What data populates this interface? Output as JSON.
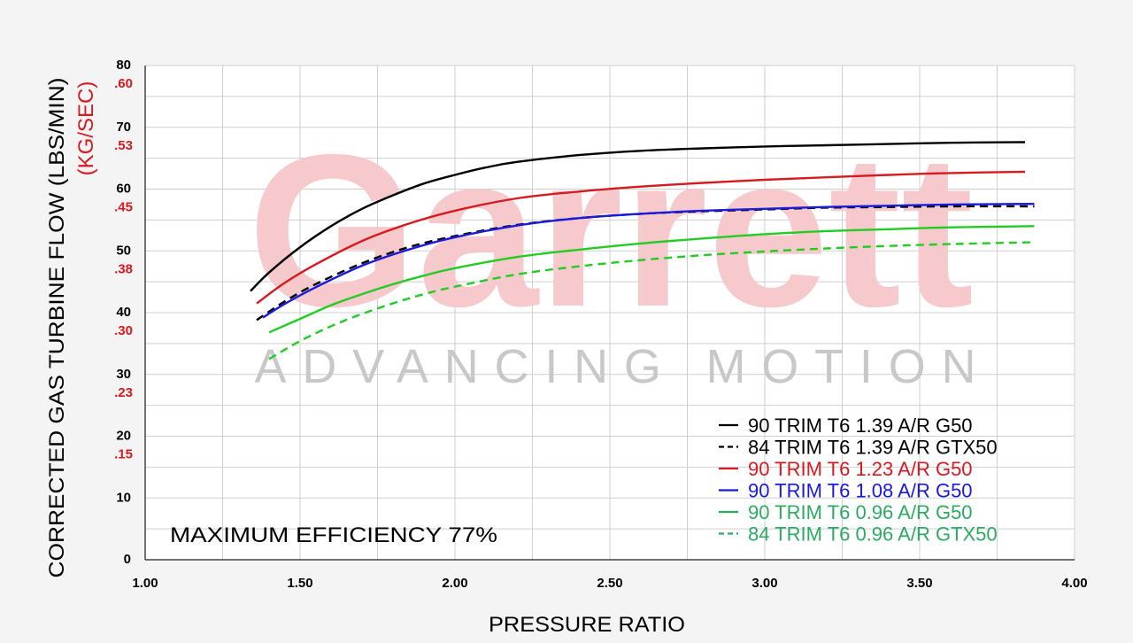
{
  "watermark": {
    "brand": "Garrett",
    "tagline": "ADVANCING MOTION"
  },
  "annotation": "MAXIMUM EFFICIENCY 77%",
  "colors": {
    "background": "#f4f4f4",
    "plot_bg": "#ffffff",
    "grid": "#cfcfcf",
    "black": "#000000",
    "red": "#d71920",
    "blue": "#1a1adc",
    "green": "#22cc22",
    "legend_green": "#2bab62",
    "secondary_axis": "#d71920",
    "watermark": "#f6c9cc",
    "tagline": "#c8c8c8"
  },
  "chart_data": {
    "type": "line",
    "xlabel": "PRESSURE RATIO",
    "ylabel": "CORRECTED GAS TURBINE FLOW (LBS/MIN)",
    "ylabel2": "(KG/SEC)",
    "xlim": [
      1.0,
      4.0
    ],
    "ylim": [
      0,
      80
    ],
    "grid": true,
    "x_ticks": [
      "1.00",
      "1.50",
      "2.00",
      "2.50",
      "3.00",
      "3.50",
      "4.00"
    ],
    "y_ticks": [
      {
        "value": 0,
        "label": "0",
        "label2": ""
      },
      {
        "value": 10,
        "label": "10",
        "label2": ""
      },
      {
        "value": 20,
        "label": "20",
        "label2": ".15"
      },
      {
        "value": 30,
        "label": "30",
        "label2": ".23"
      },
      {
        "value": 40,
        "label": "40",
        "label2": ".30"
      },
      {
        "value": 50,
        "label": "50",
        "label2": ".38"
      },
      {
        "value": 60,
        "label": "60",
        "label2": ".45"
      },
      {
        "value": 70,
        "label": "70",
        "label2": ".53"
      },
      {
        "value": 80,
        "label": "80",
        "label2": ".60"
      }
    ],
    "legend_position": "bottom-right",
    "series": [
      {
        "name": "90 TRIM T6 1.39 A/R G50",
        "color": "#000000",
        "legend_color": "#000000",
        "dashed": false,
        "x": [
          1.34,
          1.4,
          1.5,
          1.6,
          1.7,
          1.8,
          1.9,
          2.0,
          2.1,
          2.2,
          2.4,
          2.6,
          2.8,
          3.0,
          3.2,
          3.4,
          3.6,
          3.84
        ],
        "y": [
          43.5,
          46.5,
          50.6,
          54.0,
          56.8,
          59.0,
          60.9,
          62.3,
          63.5,
          64.4,
          65.5,
          66.2,
          66.6,
          66.9,
          67.1,
          67.3,
          67.5,
          67.6
        ]
      },
      {
        "name": "84 TRIM T6 1.39 A/R GTX50",
        "color": "#000000",
        "legend_color": "#000000",
        "dashed": true,
        "x": [
          1.36,
          1.45,
          1.55,
          1.7,
          1.85,
          2.0,
          2.2,
          2.4,
          2.6,
          2.8,
          3.0,
          3.2,
          3.4,
          3.6,
          3.87
        ],
        "y": [
          38.8,
          41.8,
          44.6,
          48.0,
          50.6,
          52.4,
          54.2,
          55.3,
          56.0,
          56.4,
          56.7,
          57.0,
          57.1,
          57.2,
          57.2
        ]
      },
      {
        "name": "90 TRIM T6 1.23 A/R G50",
        "color": "#d71920",
        "legend_color": "#d71920",
        "dashed": false,
        "x": [
          1.36,
          1.45,
          1.55,
          1.7,
          1.85,
          2.0,
          2.2,
          2.4,
          2.6,
          2.8,
          3.0,
          3.2,
          3.4,
          3.6,
          3.84
        ],
        "y": [
          41.5,
          44.8,
          47.8,
          51.6,
          54.4,
          56.5,
          58.5,
          59.6,
          60.4,
          61.0,
          61.5,
          61.9,
          62.3,
          62.6,
          62.8
        ]
      },
      {
        "name": "90 TRIM T6 1.08 A/R G50",
        "color": "#1a1adc",
        "legend_color": "#1a1adc",
        "dashed": false,
        "x": [
          1.38,
          1.45,
          1.55,
          1.7,
          1.85,
          2.0,
          2.2,
          2.4,
          2.6,
          2.8,
          3.0,
          3.2,
          3.4,
          3.6,
          3.87
        ],
        "y": [
          39.2,
          41.4,
          44.1,
          47.6,
          50.2,
          52.2,
          54.1,
          55.3,
          56.0,
          56.5,
          56.8,
          57.1,
          57.3,
          57.5,
          57.6
        ]
      },
      {
        "name": "90 TRIM T6 0.96 A/R G50",
        "color": "#22cc22",
        "legend_color": "#2bab62",
        "dashed": false,
        "x": [
          1.4,
          1.5,
          1.6,
          1.7,
          1.8,
          1.9,
          2.0,
          2.2,
          2.4,
          2.6,
          2.8,
          3.0,
          3.2,
          3.4,
          3.6,
          3.87
        ],
        "y": [
          36.8,
          39.0,
          41.2,
          43.0,
          44.6,
          46.0,
          47.2,
          49.0,
          50.2,
          51.2,
          52.0,
          52.7,
          53.2,
          53.5,
          53.8,
          54.0
        ]
      },
      {
        "name": "84 TRIM T6 0.96 A/R GTX50",
        "color": "#22cc22",
        "legend_color": "#2bab62",
        "dashed": true,
        "x": [
          1.4,
          1.5,
          1.6,
          1.7,
          1.8,
          1.9,
          2.0,
          2.2,
          2.4,
          2.6,
          2.8,
          3.0,
          3.2,
          3.4,
          3.6,
          3.87
        ],
        "y": [
          32.5,
          35.4,
          37.8,
          39.8,
          41.5,
          43.0,
          44.2,
          46.2,
          47.5,
          48.5,
          49.3,
          49.9,
          50.4,
          50.8,
          51.1,
          51.4
        ]
      }
    ]
  }
}
